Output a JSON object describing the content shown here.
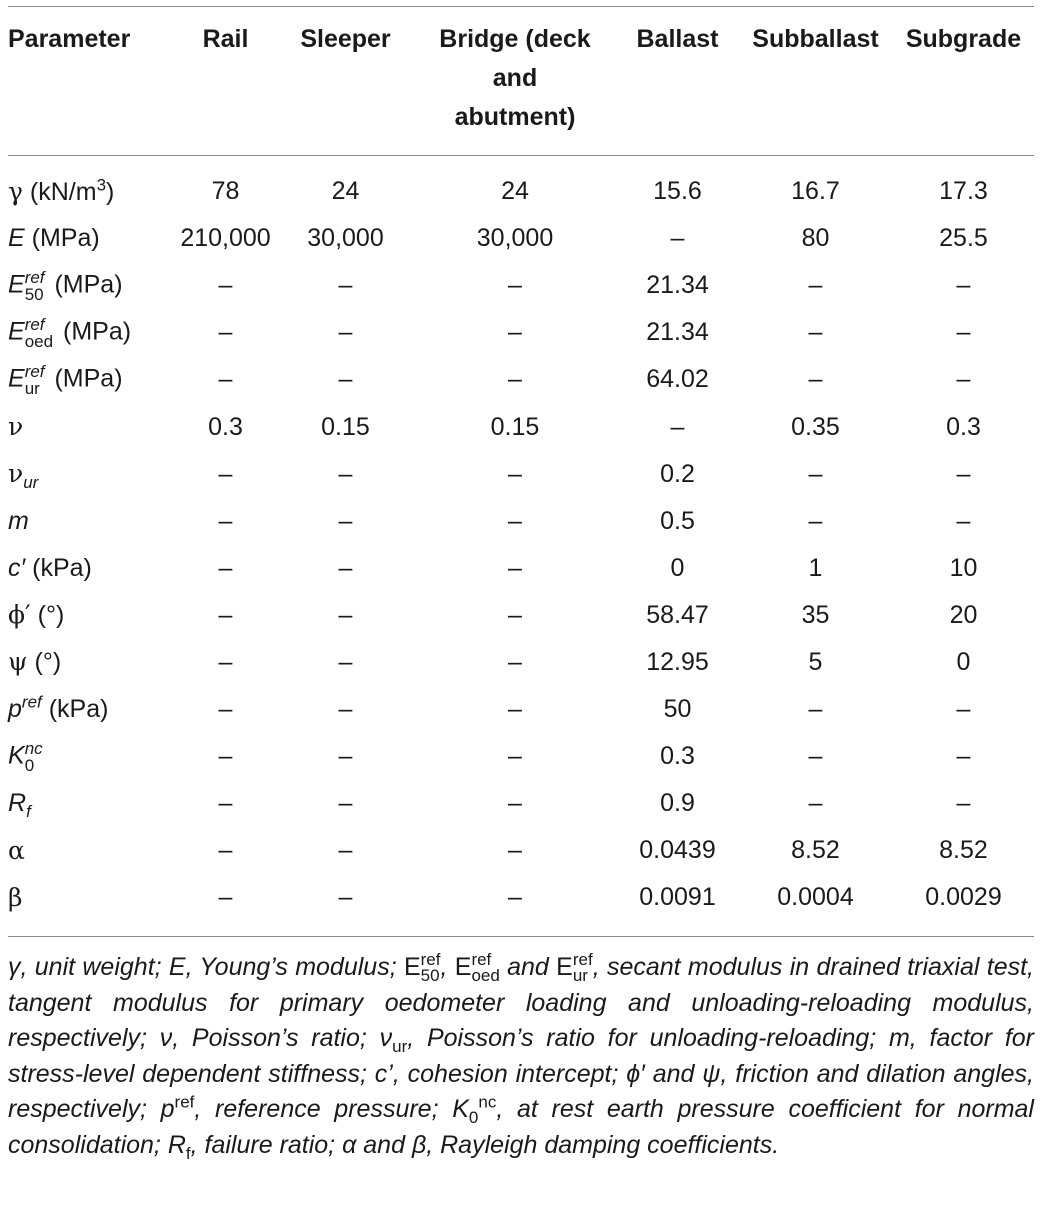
{
  "table": {
    "headers": [
      "Parameter",
      "Rail",
      "Sleeper",
      "Bridge (deck\nand\nabutment)",
      "Ballast",
      "Subballast",
      "Subgrade"
    ],
    "rows": [
      {
        "symbol": "γ",
        "unit": " (kN/m",
        "unit_sup": "3",
        "unit_end": ")",
        "values": [
          "78",
          "24",
          "24",
          "15.6",
          "16.7",
          "17.3"
        ]
      },
      {
        "symbol": "E",
        "unit": " (MPa)",
        "values": [
          "210,000",
          "30,000",
          "30,000",
          "–",
          "80",
          "25.5"
        ]
      },
      {
        "symbol": "E",
        "sup": "ref",
        "sub": "50",
        "unit": " (MPa)",
        "values": [
          "–",
          "–",
          "–",
          "21.34",
          "–",
          "–"
        ]
      },
      {
        "symbol": "E",
        "sup": "ref",
        "sub": "oed",
        "unit": " (MPa)",
        "values": [
          "–",
          "–",
          "–",
          "21.34",
          "–",
          "–"
        ]
      },
      {
        "symbol": "E",
        "sup": "ref",
        "sub": "ur",
        "unit": " (MPa)",
        "values": [
          "–",
          "–",
          "–",
          "64.02",
          "–",
          "–"
        ]
      },
      {
        "symbol": "ν",
        "unit": "",
        "values": [
          "0.3",
          "0.15",
          "0.15",
          "–",
          "0.35",
          "0.3"
        ]
      },
      {
        "symbol": "ν",
        "sub": "ur",
        "unit": "",
        "values": [
          "–",
          "–",
          "–",
          "0.2",
          "–",
          "–"
        ]
      },
      {
        "symbol": "m",
        "unit": "",
        "values": [
          "–",
          "–",
          "–",
          "0.5",
          "–",
          "–"
        ]
      },
      {
        "symbol": "c′",
        "unit": " (kPa)",
        "values": [
          "–",
          "–",
          "–",
          "0",
          "1",
          "10"
        ]
      },
      {
        "symbol": "ϕ′",
        "unit": " (°)",
        "values": [
          "–",
          "–",
          "–",
          "58.47",
          "35",
          "20"
        ]
      },
      {
        "symbol": "ψ",
        "unit": " (°)",
        "values": [
          "–",
          "–",
          "–",
          "12.95",
          "5",
          "0"
        ]
      },
      {
        "symbol": "p",
        "sup": "ref",
        "unit": " (kPa)",
        "values": [
          "–",
          "–",
          "–",
          "50",
          "–",
          "–"
        ]
      },
      {
        "symbol": "K",
        "sup": "nc",
        "sub": "0",
        "unit": "",
        "values": [
          "–",
          "–",
          "–",
          "0.3",
          "–",
          "–"
        ]
      },
      {
        "symbol": "R",
        "sub": "f",
        "unit": "",
        "values": [
          "–",
          "–",
          "–",
          "0.9",
          "–",
          "–"
        ]
      },
      {
        "symbol": "α",
        "unit": "",
        "values": [
          "–",
          "–",
          "–",
          "0.0439",
          "8.52",
          "8.52"
        ]
      },
      {
        "symbol": "β",
        "unit": "",
        "values": [
          "–",
          "–",
          "–",
          "0.0091",
          "0.0004",
          "0.0029"
        ]
      }
    ]
  },
  "footnote": {
    "p1": "γ, unit weight; E, Young’s modulus; ",
    "e": "E",
    "ref": "ref",
    "s50": "50",
    "comma": ", ",
    "soed": "oed",
    "and": " and ",
    "sur": "ur",
    "p2": ",  secant modulus in drained triaxial test, tangent modulus for primary oedometer loading and unloading-reloading modulus, respectively; ν, Poisson’s ratio; ν",
    "nu_sub": "ur",
    "p3": ", Poisson’s ratio for unloading-reloading; m, factor for stress-level dependent stiffness; c’, cohesion intercept; ϕ′ and ψ, friction and dilation angles, respectively; p",
    "p_sup": "ref",
    "p4": ", reference pressure; K",
    "k_sub": "0",
    "k_sup": "nc",
    "p5": ", at rest earth pressure coefficient for normal consolidation; R",
    "r_sub": "f",
    "p6": ", failure ratio; α and β, Rayleigh damping coefficients."
  }
}
